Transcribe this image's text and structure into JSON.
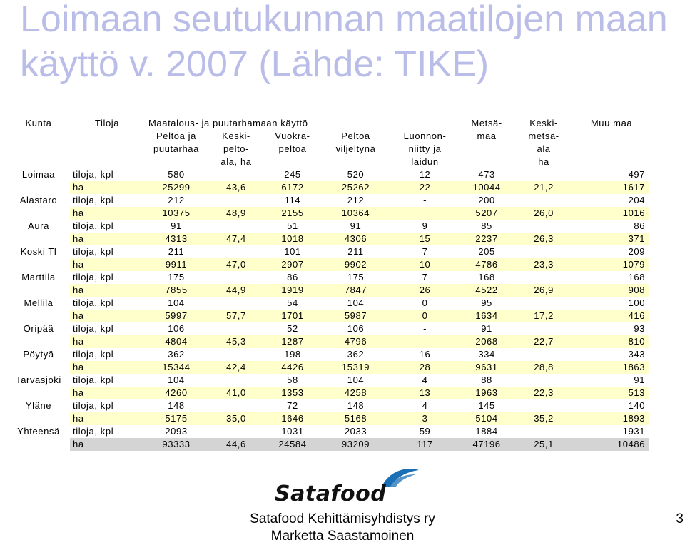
{
  "title": "Loimaan seutukunnan maatilojen maan käyttö v. 2007 (Lähde: TIKE)",
  "header": {
    "kunta": "Kunta",
    "tiloja": "Tiloja",
    "group": "Maatalous- ja puutarhamaan käyttö",
    "cols": [
      [
        "Peltoa ja",
        "puutarhaa",
        ""
      ],
      [
        "Keski-",
        "pelto-",
        "ala, ha"
      ],
      [
        "Vuokra-",
        "peltoa",
        ""
      ],
      [
        "Peltoa",
        "viljeltynä",
        ""
      ],
      [
        "Luonnon-",
        "niitty ja",
        "laidun"
      ]
    ],
    "metsamaa": [
      "Metsä-",
      "maa"
    ],
    "keskimetsaala": [
      "Keski-",
      "metsä-",
      "ala",
      "ha"
    ],
    "muumaa": "Muu maa"
  },
  "units": {
    "tiloja": "tiloja, kpl",
    "ha": "ha"
  },
  "rows": [
    {
      "kunta": "Loimaa",
      "tiloja": [
        "580",
        "",
        "245",
        "520",
        "12",
        "473",
        "",
        "497"
      ],
      "ha": [
        "25299",
        "43,6",
        "6172",
        "25262",
        "22",
        "10044",
        "21,2",
        "1617"
      ]
    },
    {
      "kunta": "Alastaro",
      "tiloja": [
        "212",
        "",
        "114",
        "212",
        "-",
        "200",
        "",
        "204"
      ],
      "ha": [
        "10375",
        "48,9",
        "2155",
        "10364",
        "",
        "5207",
        "26,0",
        "1016"
      ]
    },
    {
      "kunta": "Aura",
      "tiloja": [
        "91",
        "",
        "51",
        "91",
        "9",
        "85",
        "",
        "86"
      ],
      "ha": [
        "4313",
        "47,4",
        "1018",
        "4306",
        "15",
        "2237",
        "26,3",
        "371"
      ]
    },
    {
      "kunta": "Koski Tl",
      "tiloja": [
        "211",
        "",
        "101",
        "211",
        "7",
        "205",
        "",
        "209"
      ],
      "ha": [
        "9911",
        "47,0",
        "2907",
        "9902",
        "10",
        "4786",
        "23,3",
        "1079"
      ]
    },
    {
      "kunta": "Marttila",
      "tiloja": [
        "175",
        "",
        "86",
        "175",
        "7",
        "168",
        "",
        "168"
      ],
      "ha": [
        "7855",
        "44,9",
        "1919",
        "7847",
        "26",
        "4522",
        "26,9",
        "908"
      ]
    },
    {
      "kunta": "Mellilä",
      "tiloja": [
        "104",
        "",
        "54",
        "104",
        "0",
        "95",
        "",
        "100"
      ],
      "ha": [
        "5997",
        "57,7",
        "1701",
        "5987",
        "0",
        "1634",
        "17,2",
        "416"
      ]
    },
    {
      "kunta": "Oripää",
      "tiloja": [
        "106",
        "",
        "52",
        "106",
        "-",
        "91",
        "",
        "93"
      ],
      "ha": [
        "4804",
        "45,3",
        "1287",
        "4796",
        "",
        "2068",
        "22,7",
        "810"
      ]
    },
    {
      "kunta": "Pöytyä",
      "tiloja": [
        "362",
        "",
        "198",
        "362",
        "16",
        "334",
        "",
        "343"
      ],
      "ha": [
        "15344",
        "42,4",
        "4426",
        "15319",
        "28",
        "9631",
        "28,8",
        "1863"
      ]
    },
    {
      "kunta": "Tarvasjoki",
      "tiloja": [
        "104",
        "",
        "58",
        "104",
        "4",
        "88",
        "",
        "91"
      ],
      "ha": [
        "4260",
        "41,0",
        "1353",
        "4258",
        "13",
        "1963",
        "22,3",
        "513"
      ]
    },
    {
      "kunta": "Yläne",
      "tiloja": [
        "148",
        "",
        "72",
        "148",
        "4",
        "145",
        "",
        "140"
      ],
      "ha": [
        "5175",
        "35,0",
        "1646",
        "5168",
        "3",
        "5104",
        "35,2",
        "1893"
      ]
    },
    {
      "kunta": "Yhteensä",
      "tiloja": [
        "2093",
        "",
        "1031",
        "2033",
        "59",
        "1884",
        "",
        "1931"
      ],
      "ha": [
        "93333",
        "44,6",
        "24584",
        "93209",
        "117",
        "47196",
        "25,1",
        "10486"
      ]
    }
  ],
  "logo": {
    "text": "Satafood",
    "color": "#1a6fb5"
  },
  "footer": {
    "line1": "Satafood Kehittämisyhdistys ry",
    "line2": "Marketta Saastamoinen",
    "page": "3"
  },
  "colors": {
    "title": "#b9bde8",
    "ha_row": "#ffffcc",
    "total_row": "#d4d4d4"
  }
}
